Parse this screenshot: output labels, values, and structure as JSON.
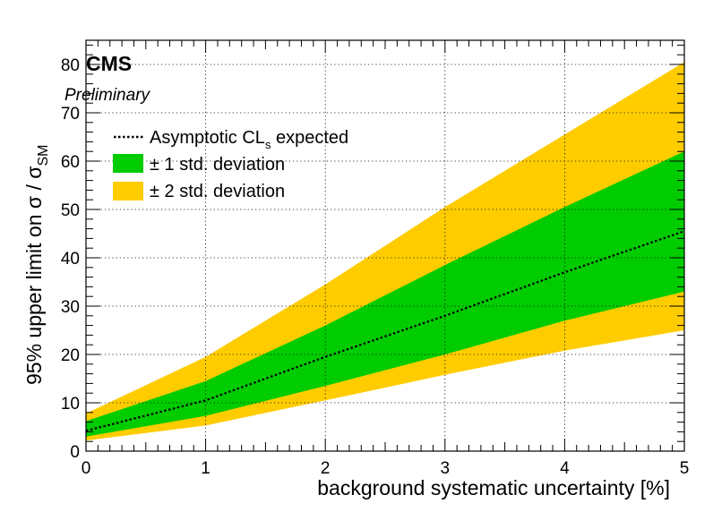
{
  "labels": {
    "experiment": "CMS",
    "status": "Preliminary"
  },
  "chart_data": {
    "type": "area",
    "xlabel": "background systematic uncertainty [%]",
    "ylabel_main": "95% upper limit on  σ / σ",
    "ylabel_sub": "SM",
    "xlim": [
      0,
      5
    ],
    "ylim": [
      0,
      85
    ],
    "x_ticks": [
      0,
      1,
      2,
      3,
      4,
      5
    ],
    "y_ticks": [
      0,
      10,
      20,
      30,
      40,
      50,
      60,
      70,
      80
    ],
    "grid": true,
    "legend_position": "top-left",
    "x": [
      0,
      1,
      2,
      3,
      4,
      5
    ],
    "expected": [
      4.2,
      10.5,
      19.5,
      28,
      37,
      45.5
    ],
    "band_1sigma_low": [
      3.0,
      7.3,
      13.5,
      20,
      27,
      33
    ],
    "band_1sigma_high": [
      6.2,
      14.5,
      26,
      38.5,
      50.5,
      62
    ],
    "band_2sigma_low": [
      2.2,
      5.3,
      10.5,
      15.8,
      20.8,
      25
    ],
    "band_2sigma_high": [
      7.8,
      19.5,
      34.5,
      50.5,
      65.5,
      80.5
    ],
    "legend": [
      {
        "label_main": "Asymptotic CL",
        "label_sub": "s",
        "label_tail": " expected",
        "style": "dotted-line"
      },
      {
        "label": "± 1 std. deviation",
        "color": "#00CC00"
      },
      {
        "label": "± 2 std. deviation",
        "color": "#FFCC00"
      }
    ],
    "colors": {
      "one_sigma": "#00CC00",
      "two_sigma": "#FFCC00",
      "expected": "#000000"
    }
  }
}
